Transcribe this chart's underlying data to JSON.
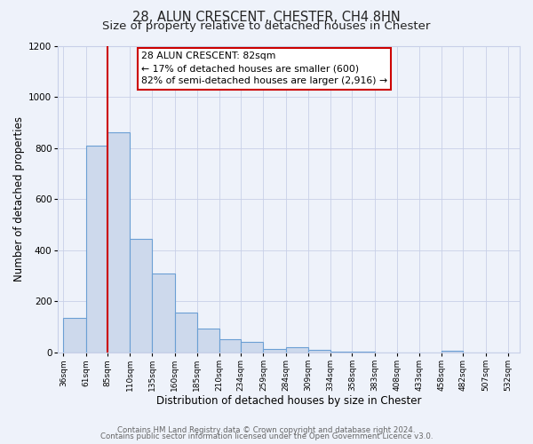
{
  "title": "28, ALUN CRESCENT, CHESTER, CH4 8HN",
  "subtitle": "Size of property relative to detached houses in Chester",
  "xlabel": "Distribution of detached houses by size in Chester",
  "ylabel": "Number of detached properties",
  "bin_edges": [
    36,
    61,
    85,
    110,
    135,
    160,
    185,
    210,
    234,
    259,
    284,
    309,
    334,
    358,
    383,
    408,
    433,
    458,
    482,
    507,
    532
  ],
  "bar_heights": [
    135,
    810,
    860,
    445,
    310,
    155,
    95,
    52,
    42,
    15,
    22,
    10,
    5,
    3,
    0,
    0,
    0,
    8,
    0,
    0
  ],
  "bar_fill_color": "#cdd9ec",
  "bar_edge_color": "#6b9fd4",
  "tick_labels": [
    "36sqm",
    "61sqm",
    "85sqm",
    "110sqm",
    "135sqm",
    "160sqm",
    "185sqm",
    "210sqm",
    "234sqm",
    "259sqm",
    "284sqm",
    "309sqm",
    "334sqm",
    "358sqm",
    "383sqm",
    "408sqm",
    "433sqm",
    "458sqm",
    "482sqm",
    "507sqm",
    "532sqm"
  ],
  "property_line_x": 85,
  "property_line_color": "#cc0000",
  "annotation_text_line1": "28 ALUN CRESCENT: 82sqm",
  "annotation_text_line2": "← 17% of detached houses are smaller (600)",
  "annotation_text_line3": "82% of semi-detached houses are larger (2,916) →",
  "annotation_box_color": "#ffffff",
  "annotation_box_edge_color": "#cc0000",
  "ylim": [
    0,
    1200
  ],
  "xlim": [
    30,
    545
  ],
  "yticks": [
    0,
    200,
    400,
    600,
    800,
    1000,
    1200
  ],
  "footer_line1": "Contains HM Land Registry data © Crown copyright and database right 2024.",
  "footer_line2": "Contains public sector information licensed under the Open Government Licence v3.0.",
  "background_color": "#eef2fa",
  "grid_color": "#c8d0e8",
  "title_fontsize": 10.5,
  "subtitle_fontsize": 9.5,
  "axis_label_fontsize": 8.5,
  "tick_fontsize": 6.5,
  "annotation_fontsize": 7.8,
  "footer_fontsize": 6.2
}
